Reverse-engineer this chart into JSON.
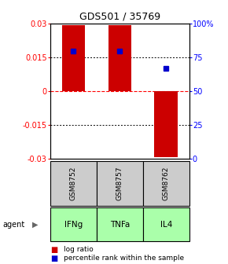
{
  "title": "GDS501 / 35769",
  "samples": [
    "GSM8752",
    "GSM8757",
    "GSM8762"
  ],
  "agents": [
    "IFNg",
    "TNFa",
    "IL4"
  ],
  "log_ratios": [
    0.0295,
    0.0295,
    -0.0295
  ],
  "percentile_ranks": [
    0.8,
    0.8,
    0.67
  ],
  "bar_color": "#cc0000",
  "dot_color": "#0000cc",
  "ylim_left": [
    -0.03,
    0.03
  ],
  "ylim_right": [
    0.0,
    1.0
  ],
  "yticks_left": [
    -0.03,
    -0.015,
    0.0,
    0.015,
    0.03
  ],
  "ytick_labels_left": [
    "-0.03",
    "-0.015",
    "0",
    "0.015",
    "0.03"
  ],
  "yticks_right": [
    0.0,
    0.25,
    0.5,
    0.75,
    1.0
  ],
  "ytick_labels_right": [
    "0",
    "25",
    "50",
    "75",
    "100%"
  ],
  "sample_bg": "#cccccc",
  "agent_bg": "#aaffaa",
  "legend_log_ratio": "log ratio",
  "legend_percentile": "percentile rank within the sample",
  "bar_width": 0.5,
  "fig_width": 2.9,
  "fig_height": 3.36,
  "dpi": 100
}
